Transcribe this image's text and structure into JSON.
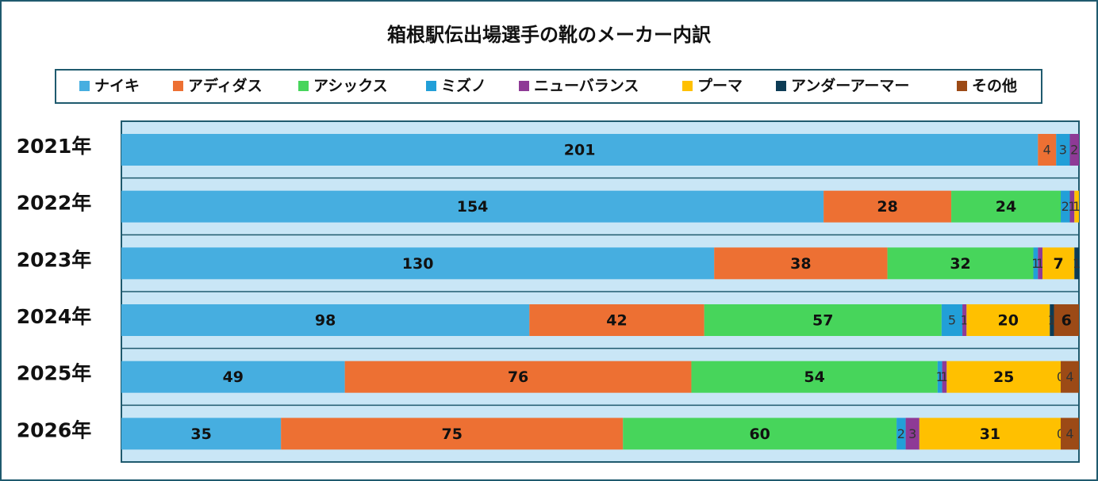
{
  "chart_data": {
    "type": "bar",
    "orientation": "horizontal",
    "stacked": "percent",
    "title": "箱根駅伝出場選手の靴のメーカー内訳",
    "categories": [
      "2021年",
      "2022年",
      "2023年",
      "2024年",
      "2025年",
      "2026年"
    ],
    "series": [
      {
        "name": "ナイキ",
        "color": "#46aee0",
        "values": [
          201,
          154,
          130,
          98,
          49,
          35
        ]
      },
      {
        "name": "アディダス",
        "color": "#ed7033",
        "values": [
          4,
          28,
          38,
          42,
          76,
          75
        ]
      },
      {
        "name": "アシックス",
        "color": "#47d55b",
        "values": [
          null,
          24,
          32,
          57,
          54,
          60
        ]
      },
      {
        "name": "ミズノ",
        "color": "#229fd8",
        "values": [
          3,
          2,
          1,
          5,
          1,
          2
        ]
      },
      {
        "name": "ニューバランス",
        "color": "#8e3a96",
        "values": [
          2,
          1,
          1,
          1,
          1,
          3
        ]
      },
      {
        "name": "プーマ",
        "color": "#ffc000",
        "values": [
          null,
          1,
          7,
          20,
          25,
          31
        ]
      },
      {
        "name": "アンダーアーマー",
        "color": "#0d3c55",
        "values": [
          null,
          null,
          1,
          1,
          0,
          0
        ]
      },
      {
        "name": "その他",
        "color": "#9c4a16",
        "values": [
          null,
          null,
          null,
          6,
          4,
          4
        ]
      }
    ]
  }
}
